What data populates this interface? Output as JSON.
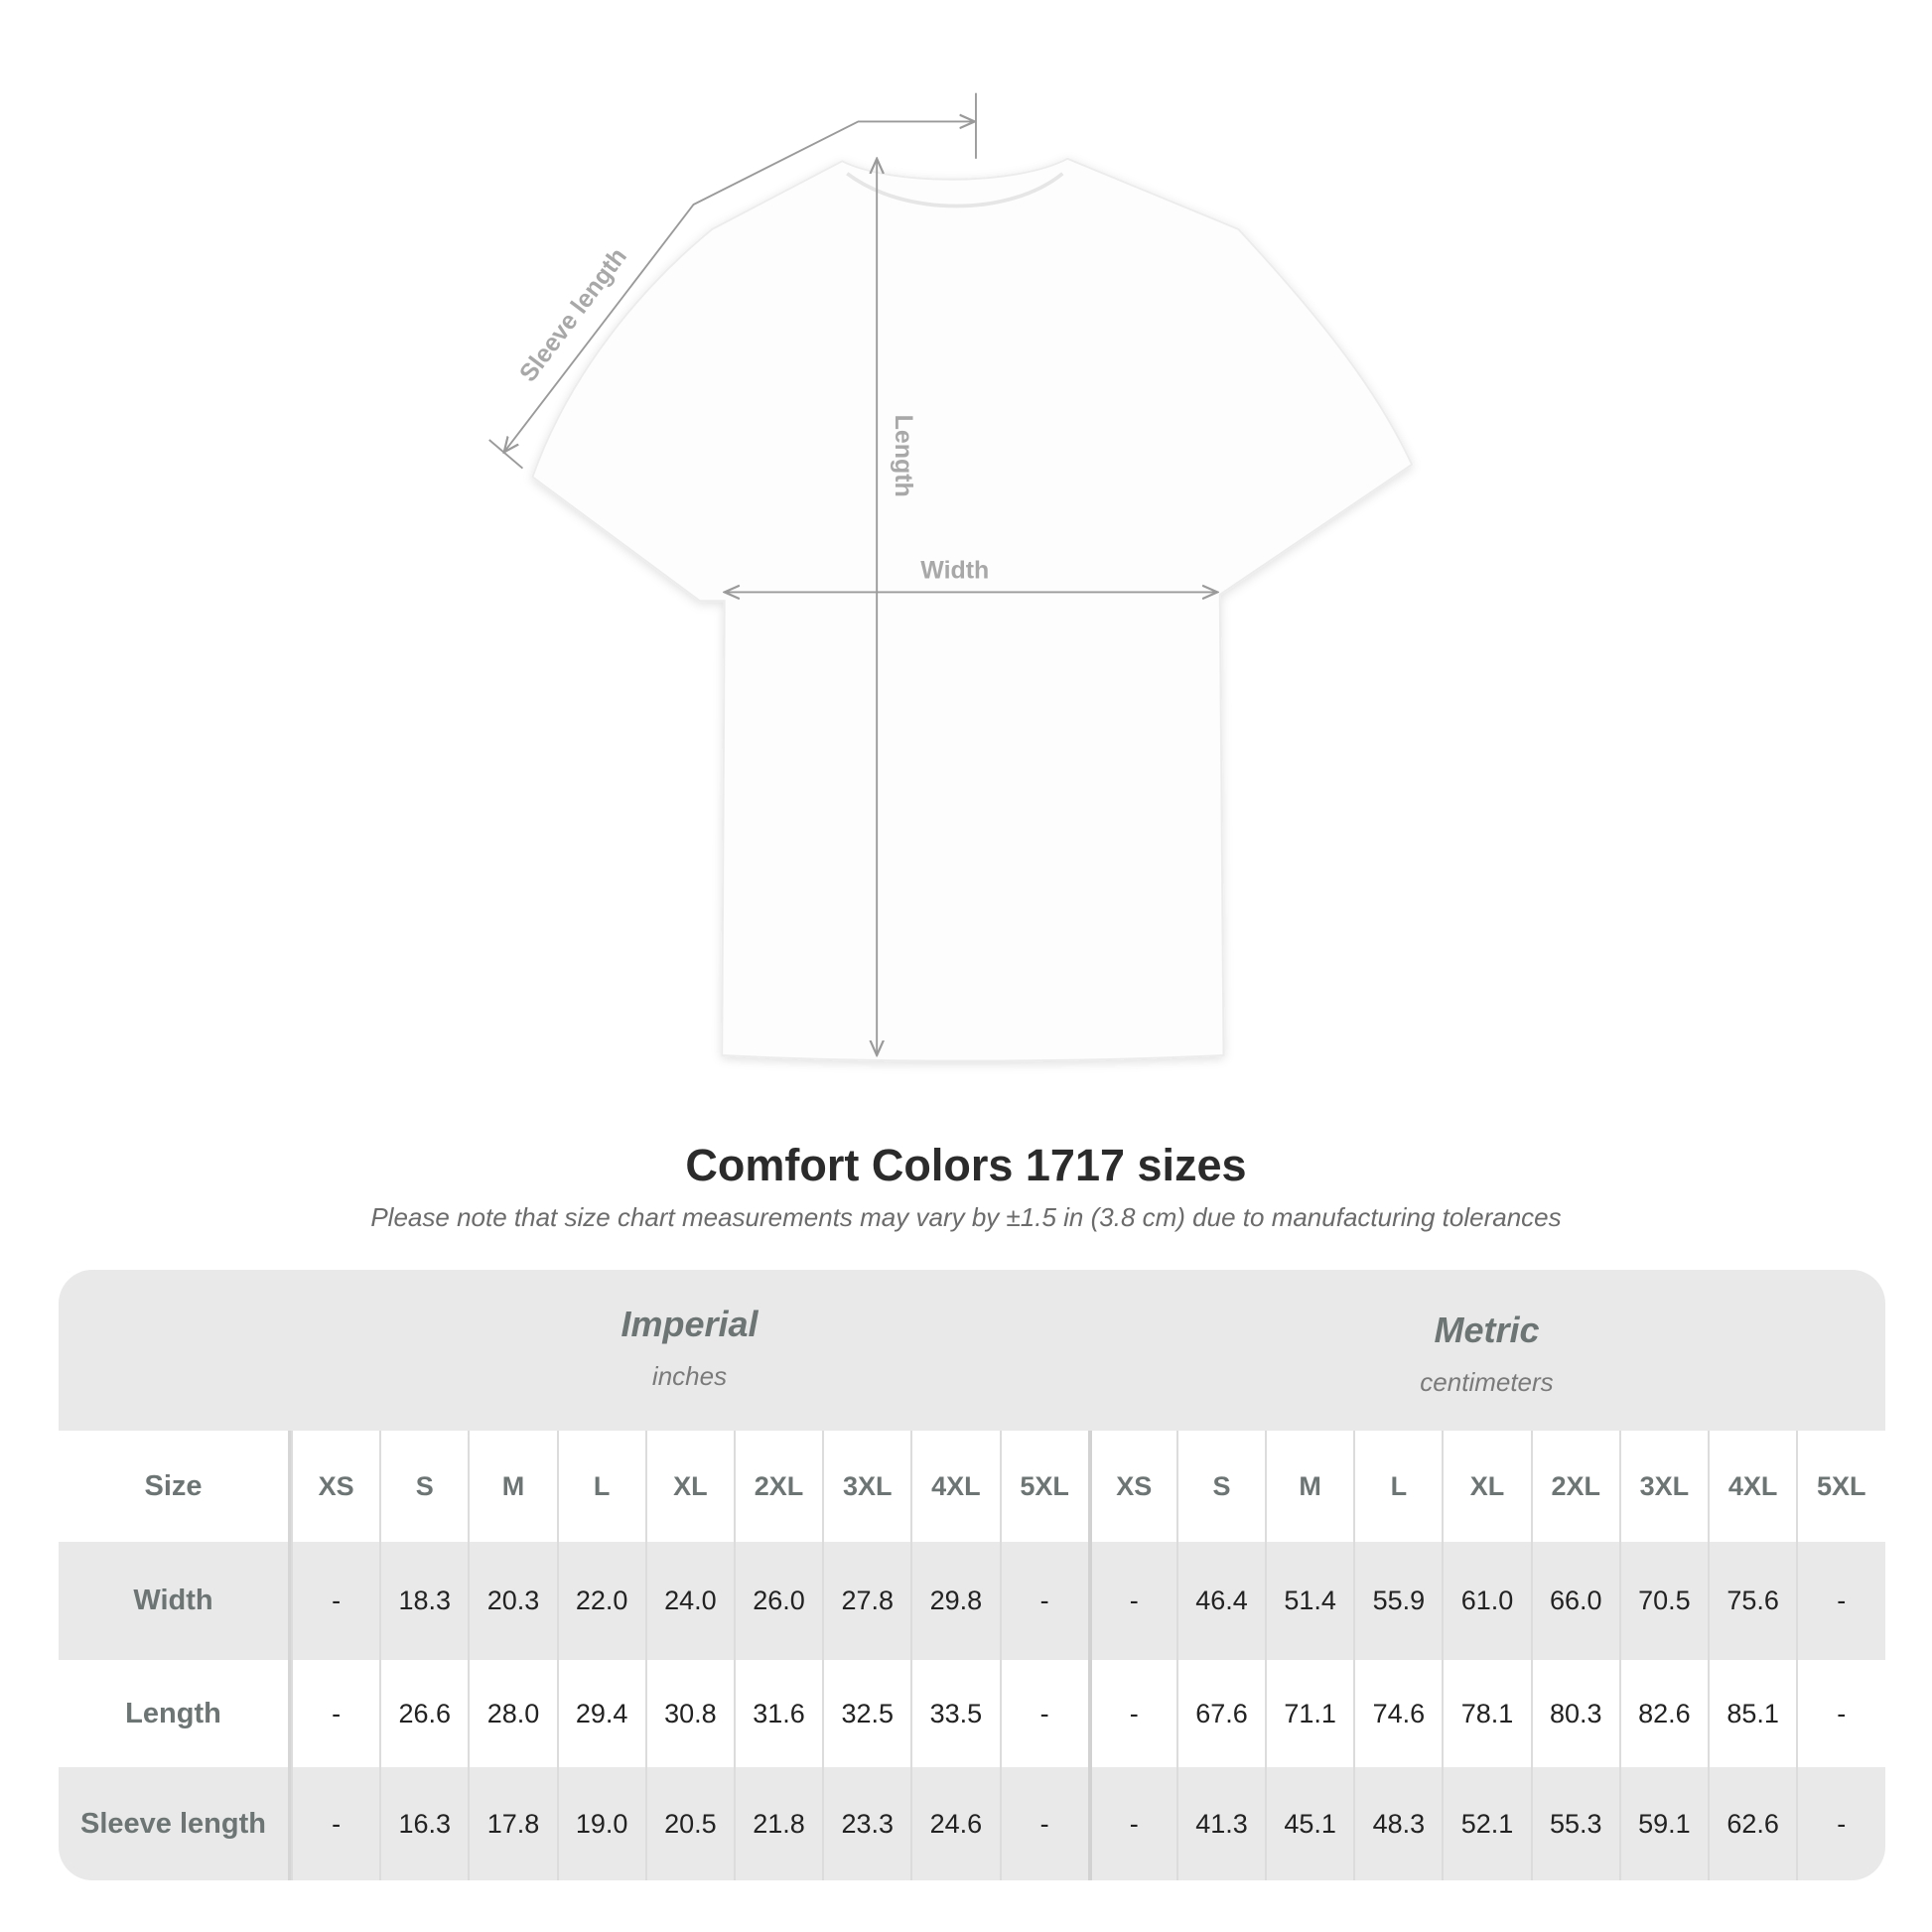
{
  "diagram": {
    "labels": {
      "sleeve": "Sleeve length",
      "length": "Length",
      "width": "Width"
    }
  },
  "title": "Comfort Colors 1717 sizes",
  "note": "Please note that size chart measurements may vary by ±1.5 in (3.8 cm) due to manufacturing tolerances",
  "table": {
    "imperial": {
      "name": "Imperial",
      "unit": "inches"
    },
    "metric": {
      "name": "Metric",
      "unit": "centimeters"
    },
    "size_label": "Size",
    "sizes": [
      "XS",
      "S",
      "M",
      "L",
      "XL",
      "2XL",
      "3XL",
      "4XL",
      "5XL"
    ],
    "rows": [
      {
        "label": "Width",
        "imperial": [
          "-",
          "18.3",
          "20.3",
          "22.0",
          "24.0",
          "26.0",
          "27.8",
          "29.8",
          "-"
        ],
        "metric": [
          "-",
          "46.4",
          "51.4",
          "55.9",
          "61.0",
          "66.0",
          "70.5",
          "75.6",
          "-"
        ]
      },
      {
        "label": "Length",
        "imperial": [
          "-",
          "26.6",
          "28.0",
          "29.4",
          "30.8",
          "31.6",
          "32.5",
          "33.5",
          "-"
        ],
        "metric": [
          "-",
          "67.6",
          "71.1",
          "74.6",
          "78.1",
          "80.3",
          "82.6",
          "85.1",
          "-"
        ]
      },
      {
        "label": "Sleeve length",
        "imperial": [
          "-",
          "16.3",
          "17.8",
          "19.0",
          "20.5",
          "21.8",
          "23.3",
          "24.6",
          "-"
        ],
        "metric": [
          "-",
          "41.3",
          "45.1",
          "48.3",
          "52.1",
          "55.3",
          "59.1",
          "62.6",
          "-"
        ]
      }
    ]
  }
}
